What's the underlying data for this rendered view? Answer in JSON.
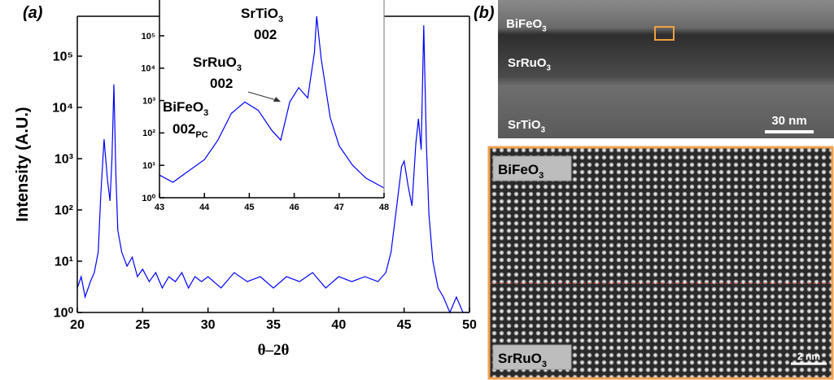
{
  "chart_data": [
    {
      "type": "line",
      "log_y": true,
      "color": "#0000ff",
      "frame": true,
      "x_label": "θ–2θ",
      "y_label": "Intensity (A.U.)",
      "x": [
        20,
        20.3,
        20.6,
        21,
        21.3,
        21.6,
        21.8,
        22.05,
        22.3,
        22.5,
        22.65,
        22.8,
        22.95,
        23.1,
        23.4,
        23.8,
        24.2,
        24.6,
        25,
        25.5,
        26,
        26.5,
        27,
        27.5,
        28,
        28.5,
        29,
        29.5,
        30,
        31,
        32,
        33,
        34,
        35,
        36,
        37,
        38,
        39,
        40,
        41,
        42,
        43,
        43.6,
        44,
        44.4,
        44.8,
        45,
        45.3,
        45.6,
        45.9,
        46.1,
        46.3,
        46.5,
        46.7,
        46.9,
        47.2,
        47.6,
        48,
        48.5,
        49,
        49.5,
        50
      ],
      "values": [
        3,
        5,
        2,
        4,
        6,
        15,
        200,
        2400,
        400,
        150,
        1000,
        28000,
        500,
        40,
        15,
        8,
        12,
        5,
        7,
        4,
        6,
        3,
        5,
        4,
        6,
        3,
        5,
        4,
        5,
        3,
        6,
        4,
        5,
        3,
        5,
        4,
        6,
        3,
        5,
        4,
        5,
        4,
        6,
        15,
        100,
        700,
        900,
        300,
        120,
        2000,
        6000,
        1500,
        400000,
        2000,
        80,
        10,
        3,
        2,
        1,
        2,
        1,
        1
      ],
      "xlim": [
        20,
        50
      ],
      "xticks": [
        20,
        25,
        30,
        35,
        40,
        45,
        50
      ],
      "ylim": [
        1,
        600000
      ],
      "yticks": [
        {
          "value": 1,
          "label": "10⁰"
        },
        {
          "value": 10,
          "label": "10¹"
        },
        {
          "value": 100,
          "label": "10²"
        },
        {
          "value": 1000,
          "label": "10³"
        },
        {
          "value": 10000,
          "label": "10⁴"
        },
        {
          "value": 100000,
          "label": "10⁵"
        }
      ]
    },
    {
      "type": "line",
      "log_y": true,
      "color": "#0000ff",
      "frame": false,
      "x": [
        43,
        43.3,
        43.6,
        44,
        44.3,
        44.6,
        44.9,
        45.2,
        45.5,
        45.7,
        45.9,
        46.1,
        46.3,
        46.45,
        46.5,
        46.6,
        46.8,
        47,
        47.3,
        47.6,
        48
      ],
      "values": [
        5,
        3,
        6,
        15,
        60,
        400,
        900,
        500,
        120,
        60,
        900,
        2500,
        1200,
        30000,
        400000,
        20000,
        300,
        40,
        10,
        4,
        2
      ],
      "xlim": [
        43,
        48
      ],
      "xticks": [
        43,
        44,
        45,
        46,
        47,
        48
      ],
      "ylim": [
        1,
        400000
      ],
      "yticks": [
        {
          "value": 1,
          "label": "10⁰"
        },
        {
          "value": 10,
          "label": "10¹"
        },
        {
          "value": 100,
          "label": "10²"
        },
        {
          "value": 1000,
          "label": "10³"
        },
        {
          "value": 10000,
          "label": "10⁴"
        },
        {
          "value": 100000,
          "label": "10⁵"
        }
      ],
      "annotations": [
        [
          {
            "text": "SrTiO",
            "sub": "3"
          },
          {
            "text": "002"
          }
        ],
        [
          {
            "text": "SrRuO",
            "sub": "3"
          },
          {
            "text": "002"
          }
        ],
        [
          {
            "text": "BiFeO",
            "sub": "3"
          },
          {
            "text": "002",
            "sub": "PC"
          }
        ]
      ]
    }
  ],
  "panel_labels": [
    "(a)",
    "(b)"
  ],
  "images": {
    "overview": {
      "labels": [
        {
          "text": "BiFeO",
          "sub": "3"
        },
        {
          "text": "SrRuO",
          "sub": "3"
        },
        {
          "text": "SrTiO",
          "sub": "3"
        }
      ],
      "scale": "30 nm"
    },
    "hrtem": {
      "labels": [
        {
          "text": "BiFeO",
          "sub": "3"
        },
        {
          "text": "SrRuO",
          "sub": "3"
        }
      ],
      "scale": "2 nm"
    }
  }
}
